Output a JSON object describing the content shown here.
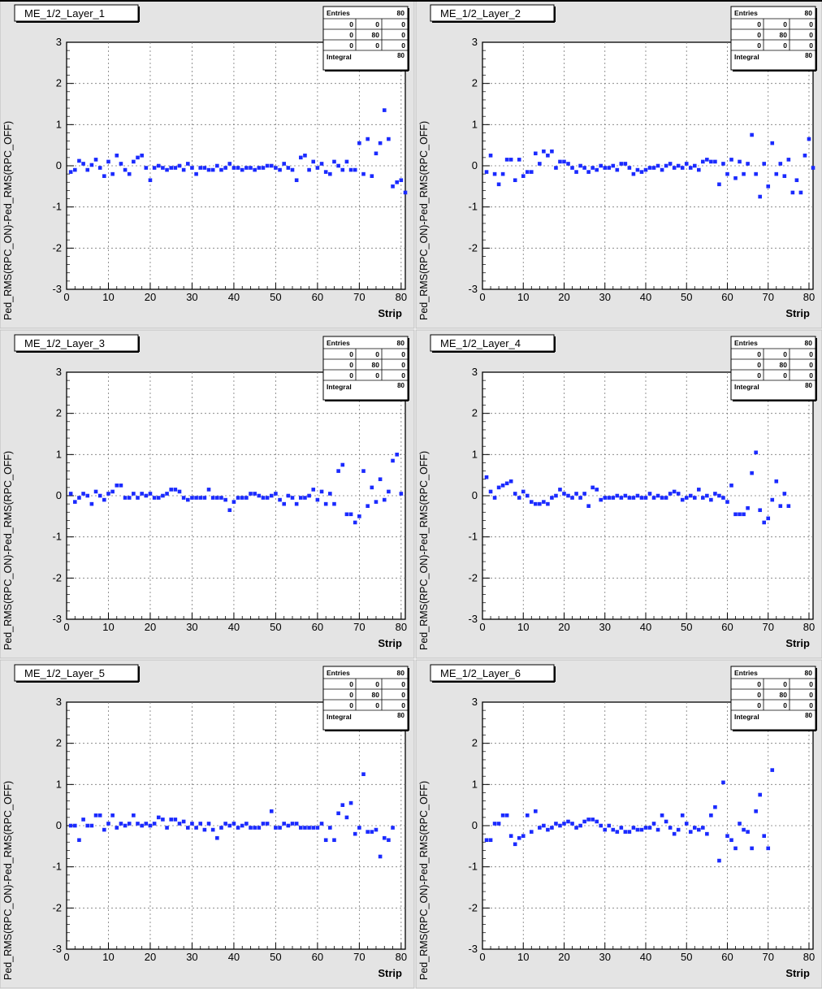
{
  "colors": {
    "pad": "#e4e4e4",
    "frame": "#ffffff",
    "marker": "#1a2aff",
    "grid": "#7a7a7a",
    "text": "#000000"
  },
  "axis": {
    "xlabel": "Strip",
    "ylabel": "Ped_RMS(RPC_ON)-Ped_RMS(RPC_OFF)",
    "xlim": [
      0,
      81
    ],
    "ylim": [
      -3,
      3
    ],
    "xticks": [
      "0",
      "10",
      "20",
      "30",
      "40",
      "50",
      "60",
      "70",
      "80"
    ],
    "yticks": [
      "-3",
      "-2",
      "-1",
      "0",
      "1",
      "2",
      "3"
    ]
  },
  "stats": {
    "entries_label": "Entries",
    "entries_value": "80",
    "integral_label": "Integral",
    "integral_value": "80",
    "grid": [
      [
        "0",
        "0",
        "0"
      ],
      [
        "0",
        "80",
        "0"
      ],
      [
        "0",
        "0",
        "0"
      ]
    ]
  },
  "chart_data": [
    {
      "type": "scatter",
      "title": "ME_1/2_Layer_1",
      "xlabel": "Strip",
      "ylabel": "Ped_RMS(RPC_ON)-Ped_RMS(RPC_OFF)",
      "xlim": [
        0,
        81
      ],
      "ylim": [
        -3,
        3
      ],
      "grid": true,
      "y": [
        -0.15,
        -0.1,
        0.12,
        0.05,
        -0.1,
        0.02,
        0.15,
        -0.05,
        -0.25,
        0.1,
        -0.2,
        0.25,
        0.05,
        -0.1,
        -0.2,
        0.1,
        0.2,
        0.25,
        -0.05,
        -0.35,
        -0.05,
        0,
        -0.05,
        -0.1,
        -0.05,
        -0.05,
        0,
        -0.1,
        0.05,
        -0.05,
        -0.2,
        -0.05,
        -0.05,
        -0.1,
        -0.1,
        0,
        -0.1,
        -0.05,
        0.05,
        -0.05,
        -0.05,
        -0.1,
        -0.05,
        -0.05,
        -0.1,
        -0.05,
        -0.05,
        0,
        0,
        -0.05,
        -0.1,
        0.05,
        -0.05,
        -0.1,
        -0.35,
        0.2,
        0.25,
        -0.1,
        0.1,
        -0.05,
        0.05,
        -0.15,
        -0.2,
        0.1,
        0,
        -0.1,
        0.1,
        -0.1,
        -0.1,
        0.55,
        -0.2,
        0.65,
        -0.25,
        0.3,
        0.55,
        1.35,
        0.65,
        -0.5,
        -0.4,
        -0.35,
        -0.65
      ]
    },
    {
      "type": "scatter",
      "title": "ME_1/2_Layer_2",
      "xlabel": "Strip",
      "ylabel": "Ped_RMS(RPC_ON)-Ped_RMS(RPC_OFF)",
      "xlim": [
        0,
        81
      ],
      "ylim": [
        -3,
        3
      ],
      "grid": true,
      "y": [
        -0.15,
        0.25,
        -0.2,
        -0.45,
        -0.2,
        0.15,
        0.15,
        -0.35,
        0.15,
        -0.25,
        -0.15,
        -0.15,
        0.3,
        0.05,
        0.35,
        0.25,
        0.35,
        -0.05,
        0.1,
        0.1,
        0.05,
        -0.05,
        -0.15,
        0,
        -0.05,
        -0.15,
        -0.05,
        -0.1,
        0,
        -0.05,
        -0.05,
        0,
        -0.1,
        0.05,
        0.05,
        -0.05,
        -0.2,
        -0.1,
        -0.15,
        -0.1,
        -0.05,
        -0.05,
        0,
        -0.1,
        0,
        0.05,
        -0.05,
        0,
        -0.05,
        0.05,
        -0.05,
        0,
        -0.1,
        0.1,
        0.15,
        0.1,
        0.1,
        -0.45,
        0.05,
        -0.2,
        0.15,
        -0.3,
        0.1,
        -0.2,
        0.05,
        0.75,
        -0.2,
        -0.75,
        0.05,
        -0.5,
        0.55,
        -0.2,
        0.05,
        -0.25,
        0.15,
        -0.65,
        -0.35,
        -0.65,
        0.25,
        0.65,
        -0.05
      ]
    },
    {
      "type": "scatter",
      "title": "ME_1/2_Layer_3",
      "xlabel": "Strip",
      "ylabel": "Ped_RMS(RPC_ON)-Ped_RMS(RPC_OFF)",
      "xlim": [
        0,
        81
      ],
      "ylim": [
        -3,
        3
      ],
      "grid": true,
      "y": [
        0.05,
        -0.15,
        -0.05,
        0.05,
        0,
        -0.2,
        0.1,
        0,
        -0.1,
        0.05,
        0.1,
        0.25,
        0.25,
        -0.05,
        -0.05,
        0.05,
        -0.05,
        0.05,
        0,
        0.05,
        -0.05,
        -0.05,
        0,
        0.05,
        0.15,
        0.15,
        0.1,
        -0.05,
        -0.1,
        -0.05,
        -0.05,
        -0.05,
        -0.05,
        0.15,
        -0.05,
        -0.05,
        -0.05,
        -0.1,
        -0.35,
        -0.15,
        -0.05,
        -0.05,
        -0.05,
        0.05,
        0.05,
        0,
        -0.05,
        -0.05,
        0,
        0.05,
        -0.1,
        -0.2,
        0,
        -0.05,
        -0.2,
        -0.05,
        -0.05,
        0,
        0.15,
        -0.1,
        0.1,
        -0.2,
        0.05,
        -0.2,
        0.6,
        0.75,
        -0.45,
        -0.45,
        -0.65,
        -0.5,
        0.6,
        -0.25,
        0.2,
        -0.15,
        0.4,
        -0.1,
        0.1,
        0.85,
        1,
        0.05
      ]
    },
    {
      "type": "scatter",
      "title": "ME_1/2_Layer_4",
      "xlabel": "Strip",
      "ylabel": "Ped_RMS(RPC_ON)-Ped_RMS(RPC_OFF)",
      "xlim": [
        0,
        81
      ],
      "ylim": [
        -3,
        3
      ],
      "grid": true,
      "y": [
        0.45,
        0.1,
        -0.05,
        0.2,
        0.25,
        0.3,
        0.35,
        0.05,
        -0.05,
        0.1,
        0,
        -0.15,
        -0.2,
        -0.2,
        -0.15,
        -0.2,
        -0.05,
        0,
        0.15,
        0.05,
        0,
        -0.05,
        0.05,
        -0.05,
        0.05,
        -0.25,
        0.2,
        0.15,
        -0.1,
        -0.05,
        -0.05,
        -0.05,
        0,
        -0.05,
        0,
        -0.05,
        -0.05,
        0,
        -0.05,
        -0.05,
        0.05,
        -0.05,
        0,
        -0.05,
        -0.05,
        0.05,
        0.1,
        0.05,
        -0.1,
        -0.05,
        0,
        -0.05,
        0.15,
        -0.05,
        0,
        -0.1,
        0.05,
        0,
        -0.05,
        -0.15,
        0.25,
        -0.45,
        -0.45,
        -0.45,
        -0.3,
        0.55,
        1.05,
        -0.35,
        -0.65,
        -0.55,
        -0.1,
        0.35,
        -0.25,
        0.05,
        -0.25
      ]
    },
    {
      "type": "scatter",
      "title": "ME_1/2_Layer_5",
      "xlabel": "Strip",
      "ylabel": "Ped_RMS(RPC_ON)-Ped_RMS(RPC_OFF)",
      "xlim": [
        0,
        81
      ],
      "ylim": [
        -3,
        3
      ],
      "grid": true,
      "y": [
        0,
        0,
        -0.35,
        0.15,
        0,
        0,
        0.25,
        0.25,
        -0.1,
        0.05,
        0.25,
        -0.05,
        0.05,
        0,
        0.05,
        0.25,
        0.05,
        0,
        0.05,
        0,
        0.05,
        0.2,
        0.15,
        -0.05,
        0.15,
        0.15,
        0.05,
        0.1,
        -0.05,
        0.05,
        -0.05,
        0.05,
        -0.1,
        0.05,
        -0.1,
        -0.3,
        -0.05,
        0.05,
        0,
        0.05,
        -0.05,
        0,
        0.05,
        -0.05,
        -0.05,
        -0.05,
        0.05,
        0.05,
        0.35,
        -0.05,
        -0.05,
        0.05,
        0,
        0.05,
        0.05,
        -0.05,
        -0.05,
        -0.05,
        -0.05,
        -0.05,
        0.05,
        -0.35,
        -0.05,
        -0.35,
        0.3,
        0.5,
        0.2,
        0.55,
        -0.2,
        -0.05,
        1.25,
        -0.15,
        -0.15,
        -0.1,
        -0.75,
        -0.3,
        -0.35,
        -0.05
      ]
    },
    {
      "type": "scatter",
      "title": "ME_1/2_Layer_6",
      "xlabel": "Strip",
      "ylabel": "Ped_RMS(RPC_ON)-Ped_RMS(RPC_OFF)",
      "xlim": [
        0,
        81
      ],
      "ylim": [
        -3,
        3
      ],
      "grid": true,
      "y": [
        -0.35,
        -0.35,
        0.05,
        0.05,
        0.25,
        0.25,
        -0.25,
        -0.45,
        -0.3,
        -0.25,
        0.25,
        -0.15,
        0.35,
        -0.05,
        0,
        -0.1,
        -0.05,
        0.05,
        0,
        0.05,
        0.1,
        0.05,
        -0.05,
        0,
        0.1,
        0.15,
        0.15,
        0.1,
        0,
        -0.1,
        0,
        -0.1,
        -0.15,
        -0.05,
        -0.15,
        -0.15,
        -0.05,
        -0.1,
        -0.1,
        -0.05,
        -0.05,
        0.05,
        -0.1,
        0.25,
        0.1,
        -0.05,
        -0.2,
        -0.1,
        0.25,
        0.05,
        -0.15,
        -0.05,
        -0.1,
        -0.05,
        -0.2,
        0.25,
        0.45,
        -0.85,
        1.05,
        -0.25,
        -0.35,
        -0.55,
        0.05,
        -0.1,
        -0.15,
        -0.55,
        0.35,
        0.75,
        -0.25,
        -0.55,
        1.35
      ]
    }
  ]
}
